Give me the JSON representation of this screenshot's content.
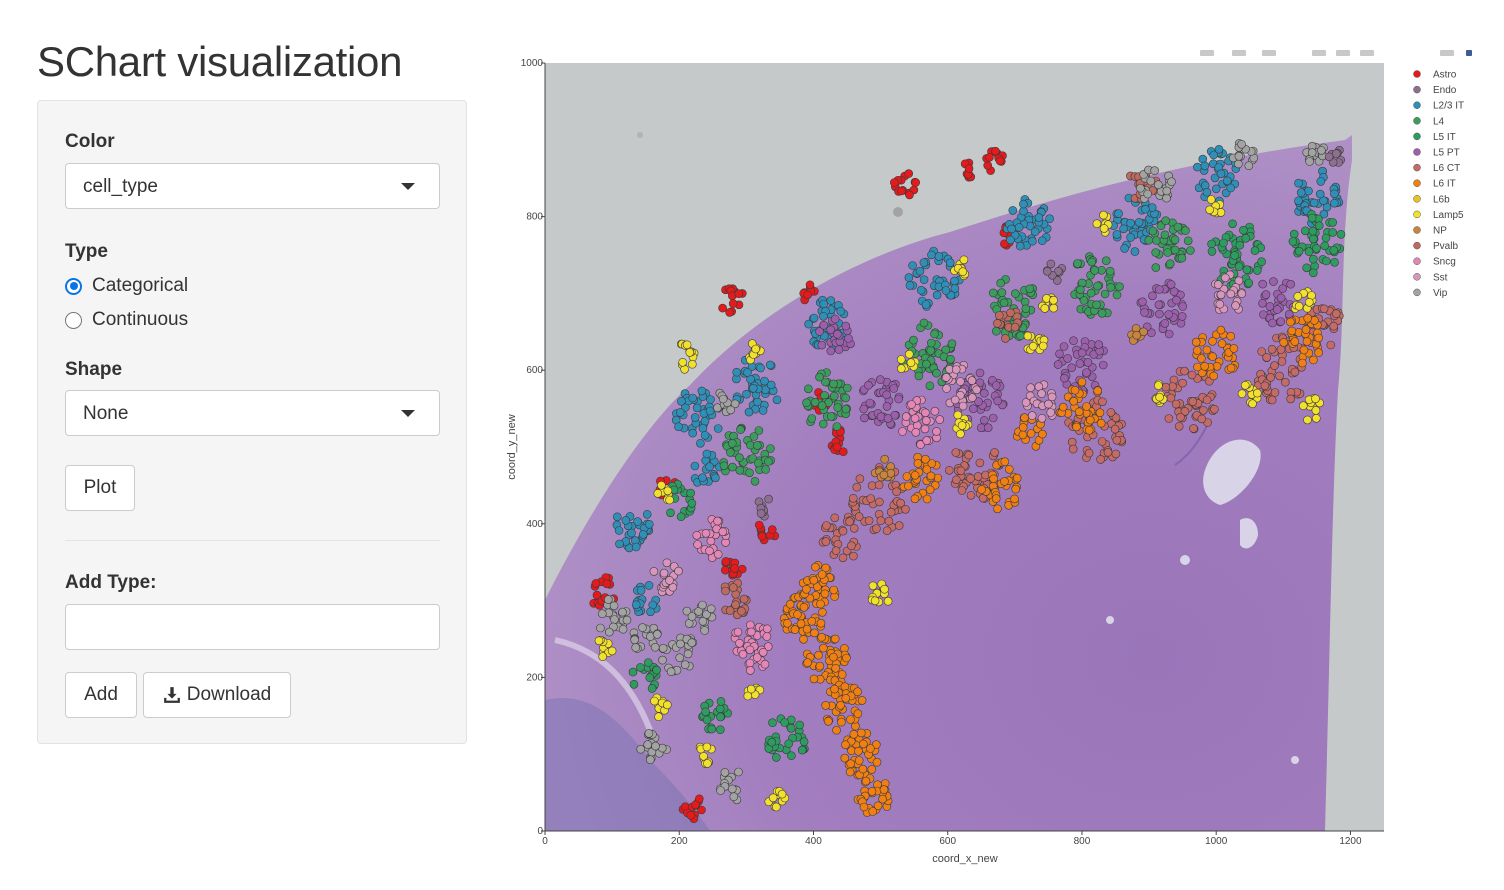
{
  "page": {
    "title": "SChart visualization"
  },
  "form": {
    "color_label": "Color",
    "color_value": "cell_type",
    "type_label": "Type",
    "type_options": [
      "Categorical",
      "Continuous"
    ],
    "type_selected": "Categorical",
    "shape_label": "Shape",
    "shape_value": "None",
    "plot_button": "Plot",
    "add_type_label": "Add Type:",
    "add_type_value": "",
    "add_button": "Add",
    "download_button": "Download"
  },
  "icons": {
    "select_caret": "caret-down-icon",
    "download": "download-icon"
  },
  "chart_data": {
    "type": "scatter",
    "title": "",
    "xlabel": "coord_x_new",
    "ylabel": "coord_y_new",
    "xlim": [
      0,
      1250
    ],
    "ylim": [
      0,
      1000
    ],
    "xticks": [
      "0",
      "200",
      "400",
      "600",
      "800",
      "1000",
      "1200"
    ],
    "yticks": [
      "0",
      "200",
      "400",
      "600",
      "800",
      "1000"
    ],
    "background": "H&E-stained tissue section image",
    "legend_position": "right",
    "series": [
      {
        "name": "Astro",
        "color": "#e41a1c"
      },
      {
        "name": "Endo",
        "color": "#8f6f8f"
      },
      {
        "name": "L2/3 IT",
        "color": "#2f8fb8"
      },
      {
        "name": "L4",
        "color": "#3a9d5d"
      },
      {
        "name": "L5 IT",
        "color": "#2e9b60"
      },
      {
        "name": "L5 PT",
        "color": "#9c5fad"
      },
      {
        "name": "L6 CT",
        "color": "#c56a66"
      },
      {
        "name": "L6 IT",
        "color": "#f07f14"
      },
      {
        "name": "L6b",
        "color": "#e8c422"
      },
      {
        "name": "Lamp5",
        "color": "#f2e02d"
      },
      {
        "name": "NP",
        "color": "#c9843f"
      },
      {
        "name": "Pvalb",
        "color": "#bf6a5e"
      },
      {
        "name": "Sncg",
        "color": "#e486b8"
      },
      {
        "name": "Sst",
        "color": "#d996bd"
      },
      {
        "name": "Vip",
        "color": "#a3a3a3"
      }
    ],
    "clusters": [
      {
        "type": "Astro",
        "x": 86,
        "y": 312,
        "r": 20,
        "n": 18
      },
      {
        "type": "Astro",
        "x": 283,
        "y": 343,
        "r": 16,
        "n": 14
      },
      {
        "type": "Astro",
        "x": 538,
        "y": 843,
        "r": 18,
        "n": 14
      },
      {
        "type": "Astro",
        "x": 670,
        "y": 872,
        "r": 14,
        "n": 12
      },
      {
        "type": "Astro",
        "x": 440,
        "y": 510,
        "r": 16,
        "n": 14
      },
      {
        "type": "Astro",
        "x": 220,
        "y": 30,
        "r": 16,
        "n": 12
      },
      {
        "type": "Astro",
        "x": 280,
        "y": 690,
        "r": 18,
        "n": 14
      },
      {
        "type": "Astro",
        "x": 330,
        "y": 390,
        "r": 14,
        "n": 10
      },
      {
        "type": "Astro",
        "x": 690,
        "y": 775,
        "r": 12,
        "n": 8
      },
      {
        "type": "Astro",
        "x": 410,
        "y": 560,
        "r": 12,
        "n": 8
      },
      {
        "type": "Astro",
        "x": 630,
        "y": 860,
        "r": 10,
        "n": 8
      },
      {
        "type": "Astro",
        "x": 395,
        "y": 700,
        "r": 12,
        "n": 8
      },
      {
        "type": "Astro",
        "x": 180,
        "y": 450,
        "r": 14,
        "n": 10
      },
      {
        "type": "L2/3 IT",
        "x": 130,
        "y": 395,
        "r": 28,
        "n": 28
      },
      {
        "type": "L2/3 IT",
        "x": 230,
        "y": 540,
        "r": 36,
        "n": 38
      },
      {
        "type": "L2/3 IT",
        "x": 315,
        "y": 580,
        "r": 36,
        "n": 40
      },
      {
        "type": "L2/3 IT",
        "x": 420,
        "y": 660,
        "r": 32,
        "n": 36
      },
      {
        "type": "L2/3 IT",
        "x": 580,
        "y": 720,
        "r": 38,
        "n": 42
      },
      {
        "type": "L2/3 IT",
        "x": 720,
        "y": 790,
        "r": 34,
        "n": 38
      },
      {
        "type": "L2/3 IT",
        "x": 880,
        "y": 790,
        "r": 36,
        "n": 40
      },
      {
        "type": "L2/3 IT",
        "x": 1000,
        "y": 855,
        "r": 34,
        "n": 36
      },
      {
        "type": "L2/3 IT",
        "x": 1150,
        "y": 825,
        "r": 34,
        "n": 40
      },
      {
        "type": "L2/3 IT",
        "x": 150,
        "y": 300,
        "r": 20,
        "n": 16
      },
      {
        "type": "L2/3 IT",
        "x": 240,
        "y": 470,
        "r": 22,
        "n": 18
      },
      {
        "type": "L4",
        "x": 300,
        "y": 490,
        "r": 38,
        "n": 44
      },
      {
        "type": "L4",
        "x": 420,
        "y": 560,
        "r": 36,
        "n": 42
      },
      {
        "type": "L4",
        "x": 570,
        "y": 620,
        "r": 40,
        "n": 48
      },
      {
        "type": "L4",
        "x": 700,
        "y": 680,
        "r": 40,
        "n": 48
      },
      {
        "type": "L4",
        "x": 820,
        "y": 710,
        "r": 40,
        "n": 48
      },
      {
        "type": "L4",
        "x": 930,
        "y": 760,
        "r": 34,
        "n": 40
      },
      {
        "type": "L5 IT",
        "x": 1030,
        "y": 750,
        "r": 40,
        "n": 50
      },
      {
        "type": "L5 IT",
        "x": 1150,
        "y": 765,
        "r": 38,
        "n": 46
      },
      {
        "type": "L5 IT",
        "x": 360,
        "y": 120,
        "r": 30,
        "n": 30
      },
      {
        "type": "L5 IT",
        "x": 200,
        "y": 430,
        "r": 22,
        "n": 18
      },
      {
        "type": "L5 IT",
        "x": 250,
        "y": 150,
        "r": 24,
        "n": 20
      },
      {
        "type": "L5 IT",
        "x": 150,
        "y": 200,
        "r": 20,
        "n": 16
      },
      {
        "type": "L5 PT",
        "x": 500,
        "y": 560,
        "r": 34,
        "n": 36
      },
      {
        "type": "L5 PT",
        "x": 650,
        "y": 560,
        "r": 36,
        "n": 40
      },
      {
        "type": "L5 PT",
        "x": 800,
        "y": 610,
        "r": 36,
        "n": 40
      },
      {
        "type": "L5 PT",
        "x": 920,
        "y": 680,
        "r": 34,
        "n": 36
      },
      {
        "type": "L5 PT",
        "x": 1090,
        "y": 690,
        "r": 30,
        "n": 30
      },
      {
        "type": "L5 PT",
        "x": 430,
        "y": 640,
        "r": 26,
        "n": 22
      },
      {
        "type": "L6 CT",
        "x": 500,
        "y": 430,
        "r": 42,
        "n": 48
      },
      {
        "type": "L6 CT",
        "x": 640,
        "y": 470,
        "r": 40,
        "n": 46
      },
      {
        "type": "L6 CT",
        "x": 820,
        "y": 520,
        "r": 42,
        "n": 50
      },
      {
        "type": "L6 CT",
        "x": 960,
        "y": 560,
        "r": 40,
        "n": 48
      },
      {
        "type": "L6 CT",
        "x": 1100,
        "y": 600,
        "r": 42,
        "n": 50
      },
      {
        "type": "L6 CT",
        "x": 1160,
        "y": 660,
        "r": 30,
        "n": 30
      },
      {
        "type": "L6 CT",
        "x": 440,
        "y": 380,
        "r": 30,
        "n": 28
      },
      {
        "type": "L6 IT",
        "x": 385,
        "y": 280,
        "r": 30,
        "n": 40
      },
      {
        "type": "L6 IT",
        "x": 420,
        "y": 220,
        "r": 32,
        "n": 44
      },
      {
        "type": "L6 IT",
        "x": 445,
        "y": 160,
        "r": 30,
        "n": 42
      },
      {
        "type": "L6 IT",
        "x": 470,
        "y": 100,
        "r": 28,
        "n": 36
      },
      {
        "type": "L6 IT",
        "x": 490,
        "y": 45,
        "r": 24,
        "n": 28
      },
      {
        "type": "L6 IT",
        "x": 410,
        "y": 320,
        "r": 26,
        "n": 30
      },
      {
        "type": "L6 IT",
        "x": 560,
        "y": 460,
        "r": 28,
        "n": 28
      },
      {
        "type": "L6 IT",
        "x": 680,
        "y": 450,
        "r": 30,
        "n": 30
      },
      {
        "type": "L6 IT",
        "x": 800,
        "y": 550,
        "r": 34,
        "n": 36
      },
      {
        "type": "L6 IT",
        "x": 1000,
        "y": 620,
        "r": 34,
        "n": 36
      },
      {
        "type": "L6 IT",
        "x": 1130,
        "y": 640,
        "r": 30,
        "n": 30
      },
      {
        "type": "L6 IT",
        "x": 720,
        "y": 520,
        "r": 22,
        "n": 16
      },
      {
        "type": "Lamp5",
        "x": 90,
        "y": 240,
        "r": 14,
        "n": 10
      },
      {
        "type": "Lamp5",
        "x": 170,
        "y": 160,
        "r": 14,
        "n": 10
      },
      {
        "type": "Lamp5",
        "x": 240,
        "y": 100,
        "r": 14,
        "n": 10
      },
      {
        "type": "Lamp5",
        "x": 345,
        "y": 38,
        "r": 14,
        "n": 10
      },
      {
        "type": "Lamp5",
        "x": 310,
        "y": 180,
        "r": 12,
        "n": 8
      },
      {
        "type": "Lamp5",
        "x": 500,
        "y": 310,
        "r": 16,
        "n": 12
      },
      {
        "type": "Lamp5",
        "x": 310,
        "y": 620,
        "r": 14,
        "n": 10
      },
      {
        "type": "Lamp5",
        "x": 540,
        "y": 610,
        "r": 12,
        "n": 8
      },
      {
        "type": "Lamp5",
        "x": 620,
        "y": 530,
        "r": 14,
        "n": 10
      },
      {
        "type": "Lamp5",
        "x": 730,
        "y": 640,
        "r": 16,
        "n": 12
      },
      {
        "type": "Lamp5",
        "x": 750,
        "y": 690,
        "r": 12,
        "n": 8
      },
      {
        "type": "Lamp5",
        "x": 920,
        "y": 570,
        "r": 14,
        "n": 10
      },
      {
        "type": "Lamp5",
        "x": 1050,
        "y": 570,
        "r": 14,
        "n": 10
      },
      {
        "type": "Lamp5",
        "x": 1130,
        "y": 690,
        "r": 16,
        "n": 12
      },
      {
        "type": "Lamp5",
        "x": 1140,
        "y": 550,
        "r": 16,
        "n": 12
      },
      {
        "type": "Lamp5",
        "x": 1000,
        "y": 815,
        "r": 12,
        "n": 8
      },
      {
        "type": "Lamp5",
        "x": 830,
        "y": 790,
        "r": 12,
        "n": 8
      },
      {
        "type": "Lamp5",
        "x": 620,
        "y": 730,
        "r": 14,
        "n": 10
      },
      {
        "type": "Lamp5",
        "x": 210,
        "y": 620,
        "r": 18,
        "n": 14
      },
      {
        "type": "Lamp5",
        "x": 180,
        "y": 440,
        "r": 12,
        "n": 8
      },
      {
        "type": "NP",
        "x": 505,
        "y": 470,
        "r": 16,
        "n": 10
      },
      {
        "type": "NP",
        "x": 880,
        "y": 650,
        "r": 12,
        "n": 8
      },
      {
        "type": "Pvalb",
        "x": 280,
        "y": 300,
        "r": 24,
        "n": 22
      },
      {
        "type": "Pvalb",
        "x": 890,
        "y": 840,
        "r": 22,
        "n": 18
      },
      {
        "type": "Pvalb",
        "x": 690,
        "y": 660,
        "r": 20,
        "n": 16
      },
      {
        "type": "Sncg",
        "x": 310,
        "y": 240,
        "r": 32,
        "n": 34
      },
      {
        "type": "Sncg",
        "x": 250,
        "y": 380,
        "r": 26,
        "n": 24
      },
      {
        "type": "Sncg",
        "x": 560,
        "y": 530,
        "r": 30,
        "n": 28
      },
      {
        "type": "Sst",
        "x": 620,
        "y": 580,
        "r": 28,
        "n": 26
      },
      {
        "type": "Sst",
        "x": 1020,
        "y": 700,
        "r": 26,
        "n": 22
      },
      {
        "type": "Sst",
        "x": 740,
        "y": 560,
        "r": 24,
        "n": 20
      },
      {
        "type": "Sst",
        "x": 180,
        "y": 330,
        "r": 22,
        "n": 18
      },
      {
        "type": "Vip",
        "x": 100,
        "y": 280,
        "r": 24,
        "n": 22
      },
      {
        "type": "Vip",
        "x": 150,
        "y": 250,
        "r": 20,
        "n": 16
      },
      {
        "type": "Vip",
        "x": 200,
        "y": 230,
        "r": 26,
        "n": 24
      },
      {
        "type": "Vip",
        "x": 230,
        "y": 280,
        "r": 20,
        "n": 16
      },
      {
        "type": "Vip",
        "x": 160,
        "y": 110,
        "r": 22,
        "n": 18
      },
      {
        "type": "Vip",
        "x": 280,
        "y": 60,
        "r": 20,
        "n": 14
      },
      {
        "type": "Vip",
        "x": 910,
        "y": 840,
        "r": 24,
        "n": 22
      },
      {
        "type": "Vip",
        "x": 1040,
        "y": 880,
        "r": 18,
        "n": 14
      },
      {
        "type": "Vip",
        "x": 270,
        "y": 560,
        "r": 16,
        "n": 12
      },
      {
        "type": "Vip",
        "x": 1150,
        "y": 880,
        "r": 16,
        "n": 14
      },
      {
        "type": "Endo",
        "x": 330,
        "y": 420,
        "r": 14,
        "n": 8
      },
      {
        "type": "Endo",
        "x": 760,
        "y": 730,
        "r": 14,
        "n": 8
      },
      {
        "type": "Endo",
        "x": 1180,
        "y": 880,
        "r": 12,
        "n": 8
      }
    ]
  }
}
